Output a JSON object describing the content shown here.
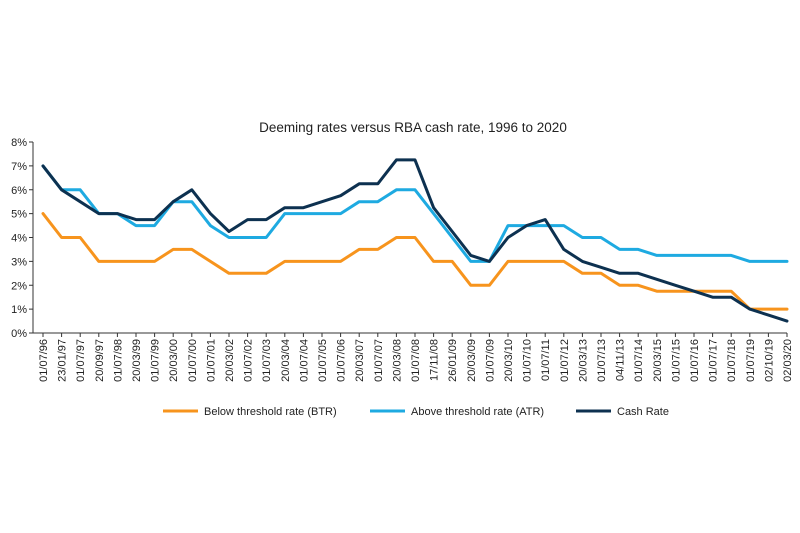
{
  "chart_data": {
    "type": "line",
    "title": "Deeming rates versus RBA cash rate, 1996 to 2020",
    "xlabel": "",
    "ylabel": "",
    "ylim": [
      0,
      8
    ],
    "y_ticks": [
      "0%",
      "1%",
      "2%",
      "3%",
      "4%",
      "5%",
      "6%",
      "7%",
      "8%"
    ],
    "grid": false,
    "legend_position": "bottom",
    "categories": [
      "01/07/96",
      "23/01/97",
      "01/07/97",
      "20/09/97",
      "01/07/98",
      "20/03/99",
      "01/07/99",
      "20/03/00",
      "01/07/00",
      "01/07/01",
      "20/03/02",
      "01/07/02",
      "01/07/03",
      "20/03/04",
      "01/07/04",
      "01/07/05",
      "01/07/06",
      "20/03/07",
      "01/07/07",
      "20/03/08",
      "01/07/08",
      "17/11/08",
      "26/01/09",
      "20/03/09",
      "01/07/09",
      "20/03/10",
      "01/07/10",
      "01/07/11",
      "01/07/12",
      "20/03/13",
      "01/07/13",
      "04/11/13",
      "01/07/14",
      "20/03/15",
      "01/07/15",
      "01/07/16",
      "01/07/17",
      "01/07/18",
      "01/07/19",
      "02/10/19",
      "02/03/20"
    ],
    "series": [
      {
        "name": "Below threshold rate (BTR)",
        "color": "#f7941d",
        "values": [
          5,
          4,
          4,
          3,
          3,
          3,
          3,
          3.5,
          3.5,
          3,
          2.5,
          2.5,
          2.5,
          3,
          3,
          3,
          3,
          3.5,
          3.5,
          4,
          4,
          3,
          3,
          2,
          2,
          3,
          3,
          3,
          3,
          2.5,
          2.5,
          2,
          2,
          1.75,
          1.75,
          1.75,
          1.75,
          1.75,
          1,
          1,
          1
        ]
      },
      {
        "name": "Above threshold rate (ATR)",
        "color": "#1eaae1",
        "values": [
          7,
          6,
          6,
          5,
          5,
          4.5,
          4.5,
          5.5,
          5.5,
          4.5,
          4,
          4,
          4,
          5,
          5,
          5,
          5,
          5.5,
          5.5,
          6,
          6,
          5,
          4,
          3,
          3,
          4.5,
          4.5,
          4.5,
          4.5,
          4,
          4,
          3.5,
          3.5,
          3.25,
          3.25,
          3.25,
          3.25,
          3.25,
          3,
          3,
          3
        ]
      },
      {
        "name": "Cash Rate",
        "color": "#0d3150",
        "values": [
          7,
          6,
          5.5,
          5,
          5,
          4.75,
          4.75,
          5.5,
          6,
          5,
          4.25,
          4.75,
          4.75,
          5.25,
          5.25,
          5.5,
          5.75,
          6.25,
          6.25,
          7.25,
          7.25,
          5.25,
          4.25,
          3.25,
          3,
          4,
          4.5,
          4.75,
          3.5,
          3,
          2.75,
          2.5,
          2.5,
          2.25,
          2,
          1.75,
          1.5,
          1.5,
          1,
          0.75,
          0.5
        ]
      }
    ]
  }
}
